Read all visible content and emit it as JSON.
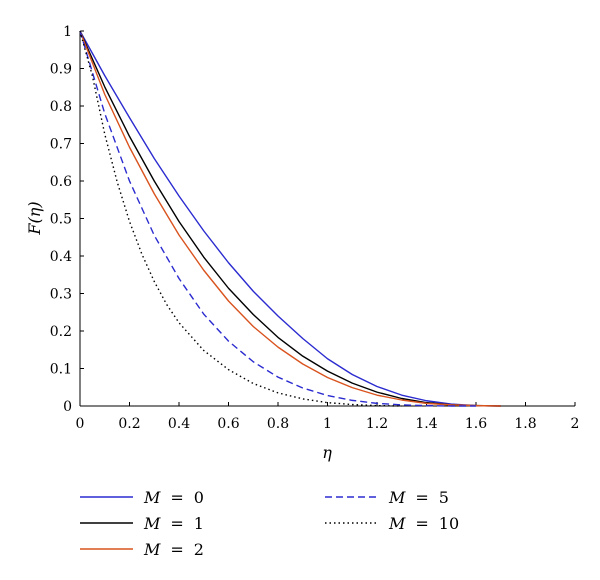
{
  "chart_data": {
    "type": "line",
    "title": "",
    "xlabel": "η",
    "ylabel": "F(η)",
    "xlim": [
      0,
      2
    ],
    "ylim": [
      0,
      1
    ],
    "xticks": [
      0,
      0.2,
      0.4,
      0.6,
      0.8,
      1,
      1.2,
      1.4,
      1.6,
      1.8,
      2
    ],
    "yticks": [
      0,
      0.1,
      0.2,
      0.3,
      0.4,
      0.5,
      0.6,
      0.7,
      0.8,
      0.9,
      1
    ],
    "grid": false,
    "legend_placement": "bottom",
    "series": [
      {
        "name": "M = 0",
        "label_var": "M",
        "label_eq": "=",
        "label_val": "0",
        "color": "#2b2bd0",
        "dash": "solid",
        "x": [
          0,
          0.1,
          0.2,
          0.3,
          0.4,
          0.5,
          0.6,
          0.7,
          0.8,
          0.9,
          1.0,
          1.1,
          1.2,
          1.3,
          1.4,
          1.5,
          1.6,
          1.7
        ],
        "y": [
          1.0,
          0.881,
          0.769,
          0.66,
          0.56,
          0.467,
          0.382,
          0.306,
          0.24,
          0.18,
          0.126,
          0.084,
          0.052,
          0.029,
          0.014,
          0.005,
          0.001,
          0.0
        ]
      },
      {
        "name": "M = 1",
        "label_var": "M",
        "label_eq": "=",
        "label_val": "1",
        "color": "#000000",
        "dash": "solid",
        "x": [
          0,
          0.1,
          0.2,
          0.3,
          0.4,
          0.5,
          0.6,
          0.7,
          0.8,
          0.9,
          1.0,
          1.1,
          1.2,
          1.3,
          1.4,
          1.5,
          1.6,
          1.7
        ],
        "y": [
          1.0,
          0.851,
          0.719,
          0.6,
          0.492,
          0.397,
          0.314,
          0.244,
          0.183,
          0.133,
          0.093,
          0.061,
          0.037,
          0.02,
          0.009,
          0.003,
          0.001,
          0.0
        ]
      },
      {
        "name": "M = 2",
        "label_var": "M",
        "label_eq": "=",
        "label_val": "2",
        "color": "#d9531e",
        "dash": "solid",
        "x": [
          0,
          0.1,
          0.2,
          0.3,
          0.4,
          0.5,
          0.6,
          0.7,
          0.8,
          0.9,
          1.0,
          1.1,
          1.2,
          1.3,
          1.4,
          1.5,
          1.6,
          1.7
        ],
        "y": [
          1.0,
          0.831,
          0.69,
          0.566,
          0.456,
          0.362,
          0.28,
          0.212,
          0.157,
          0.112,
          0.076,
          0.049,
          0.029,
          0.016,
          0.007,
          0.003,
          0.001,
          0.0
        ]
      },
      {
        "name": "M = 5",
        "label_var": "M",
        "label_eq": "=",
        "label_val": "5",
        "color": "#2b2bd0",
        "dash": "dashed",
        "x": [
          0,
          0.1,
          0.2,
          0.3,
          0.4,
          0.5,
          0.6,
          0.7,
          0.8,
          0.9,
          1.0,
          1.1,
          1.2,
          1.3,
          1.4,
          1.5,
          1.6
        ],
        "y": [
          1.0,
          0.78,
          0.6,
          0.455,
          0.34,
          0.245,
          0.173,
          0.118,
          0.077,
          0.048,
          0.028,
          0.015,
          0.007,
          0.003,
          0.001,
          0.0,
          0.0
        ]
      },
      {
        "name": "M = 10",
        "label_var": "M",
        "label_eq": "=",
        "label_val": "10",
        "color": "#000000",
        "dash": "dotted",
        "x": [
          0,
          0.05,
          0.1,
          0.15,
          0.2,
          0.25,
          0.3,
          0.35,
          0.4,
          0.5,
          0.6,
          0.7,
          0.8,
          0.9,
          1.0,
          1.1,
          1.2,
          1.3
        ],
        "y": [
          1.0,
          0.88,
          0.725,
          0.598,
          0.492,
          0.405,
          0.332,
          0.271,
          0.222,
          0.148,
          0.097,
          0.06,
          0.035,
          0.019,
          0.009,
          0.004,
          0.001,
          0.0
        ]
      }
    ]
  }
}
